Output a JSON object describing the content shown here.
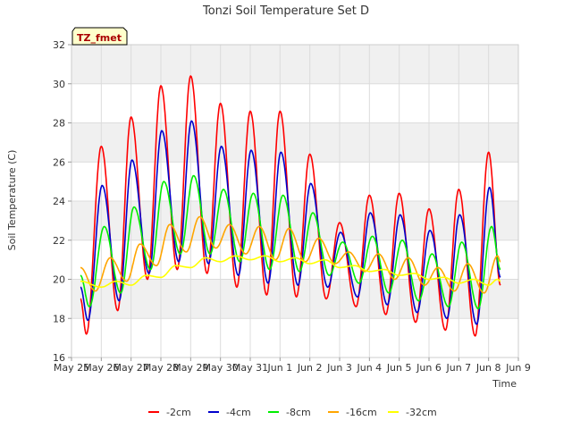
{
  "chart_data": {
    "type": "line",
    "title": "Tonzi Soil Temperature Set D",
    "xlabel": "Time",
    "ylabel": "Soil Temperature (C)",
    "annotation": "TZ_fmet",
    "ylim": [
      16,
      32
    ],
    "yticks": [
      16,
      18,
      20,
      22,
      24,
      26,
      28,
      30,
      32
    ],
    "xlim": [
      0,
      15
    ],
    "xtick_positions": [
      0,
      1,
      2,
      3,
      4,
      5,
      6,
      7,
      8,
      9,
      10,
      11,
      12,
      13,
      14,
      15
    ],
    "xtick_labels": [
      "May 25",
      "May 26",
      "May 27",
      "May 28",
      "May 29",
      "May 30",
      "May 31",
      "Jun 1",
      "Jun 2",
      "Jun 3",
      "Jun 4",
      "Jun 5",
      "Jun 6",
      "Jun 7",
      "Jun 8",
      "Jun 9"
    ],
    "grid": true,
    "legend_position": "bottom",
    "series": [
      {
        "name": "-2cm",
        "color": "#ff0000",
        "peaks": [
          [
            1.0,
            26.8
          ],
          [
            2.0,
            28.3
          ],
          [
            3.0,
            29.9
          ],
          [
            4.0,
            30.4
          ],
          [
            5.0,
            29.0
          ],
          [
            6.0,
            28.6
          ],
          [
            7.0,
            28.6
          ],
          [
            8.0,
            26.4
          ],
          [
            9.0,
            22.9
          ],
          [
            10.0,
            24.3
          ],
          [
            11.0,
            24.4
          ],
          [
            12.0,
            23.6
          ],
          [
            13.0,
            24.6
          ],
          [
            14.0,
            26.5
          ]
        ],
        "troughs": [
          [
            0.5,
            17.2
          ],
          [
            1.55,
            18.4
          ],
          [
            2.55,
            20.0
          ],
          [
            3.55,
            20.5
          ],
          [
            4.55,
            20.3
          ],
          [
            5.55,
            19.6
          ],
          [
            6.55,
            19.2
          ],
          [
            7.55,
            19.1
          ],
          [
            8.55,
            19.0
          ],
          [
            9.55,
            18.6
          ],
          [
            10.55,
            18.2
          ],
          [
            11.55,
            17.8
          ],
          [
            12.55,
            17.4
          ],
          [
            13.55,
            17.1
          ]
        ],
        "start": [
          0.3,
          19.0
        ],
        "end": [
          14.4,
          19.7
        ]
      },
      {
        "name": "-4cm",
        "color": "#0000cc",
        "peaks": [
          [
            1.03,
            24.8
          ],
          [
            2.03,
            26.1
          ],
          [
            3.03,
            27.6
          ],
          [
            4.03,
            28.1
          ],
          [
            5.03,
            26.8
          ],
          [
            6.03,
            26.6
          ],
          [
            7.03,
            26.5
          ],
          [
            8.03,
            24.9
          ],
          [
            9.03,
            22.4
          ],
          [
            10.03,
            23.4
          ],
          [
            11.03,
            23.3
          ],
          [
            12.03,
            22.5
          ],
          [
            13.03,
            23.3
          ],
          [
            14.03,
            24.7
          ]
        ],
        "troughs": [
          [
            0.55,
            17.9
          ],
          [
            1.6,
            18.9
          ],
          [
            2.6,
            20.3
          ],
          [
            3.6,
            20.9
          ],
          [
            4.6,
            20.8
          ],
          [
            5.6,
            20.2
          ],
          [
            6.6,
            19.8
          ],
          [
            7.6,
            19.7
          ],
          [
            8.6,
            19.6
          ],
          [
            9.6,
            19.1
          ],
          [
            10.6,
            18.7
          ],
          [
            11.6,
            18.3
          ],
          [
            12.6,
            18.0
          ],
          [
            13.6,
            17.7
          ]
        ],
        "start": [
          0.3,
          19.6
        ],
        "end": [
          14.4,
          20.1
        ]
      },
      {
        "name": "-8cm",
        "color": "#00ee00",
        "peaks": [
          [
            1.1,
            22.7
          ],
          [
            2.1,
            23.7
          ],
          [
            3.1,
            25.0
          ],
          [
            4.1,
            25.3
          ],
          [
            5.1,
            24.6
          ],
          [
            6.1,
            24.4
          ],
          [
            7.1,
            24.3
          ],
          [
            8.1,
            23.4
          ],
          [
            9.1,
            21.9
          ],
          [
            10.1,
            22.2
          ],
          [
            11.1,
            22.0
          ],
          [
            12.1,
            21.3
          ],
          [
            13.1,
            21.9
          ],
          [
            14.1,
            22.7
          ]
        ],
        "troughs": [
          [
            0.6,
            18.6
          ],
          [
            1.65,
            19.3
          ],
          [
            2.65,
            20.5
          ],
          [
            3.65,
            21.3
          ],
          [
            4.65,
            21.3
          ],
          [
            5.65,
            20.9
          ],
          [
            6.65,
            20.5
          ],
          [
            7.65,
            20.4
          ],
          [
            8.65,
            20.2
          ],
          [
            9.65,
            19.8
          ],
          [
            10.65,
            19.3
          ],
          [
            11.65,
            18.9
          ],
          [
            12.65,
            18.6
          ],
          [
            13.65,
            18.5
          ]
        ],
        "start": [
          0.3,
          20.2
        ],
        "end": [
          14.4,
          20.5
        ]
      },
      {
        "name": "-16cm",
        "color": "#ffa500",
        "peaks": [
          [
            1.3,
            21.1
          ],
          [
            2.3,
            21.8
          ],
          [
            3.3,
            22.8
          ],
          [
            4.3,
            23.2
          ],
          [
            5.3,
            22.8
          ],
          [
            6.3,
            22.7
          ],
          [
            7.3,
            22.6
          ],
          [
            8.3,
            22.1
          ],
          [
            9.3,
            21.4
          ],
          [
            10.3,
            21.3
          ],
          [
            11.3,
            21.1
          ],
          [
            12.3,
            20.6
          ],
          [
            13.3,
            20.8
          ],
          [
            14.3,
            21.2
          ]
        ],
        "troughs": [
          [
            0.8,
            19.4
          ],
          [
            1.85,
            19.9
          ],
          [
            2.85,
            20.7
          ],
          [
            3.85,
            21.4
          ],
          [
            4.85,
            21.6
          ],
          [
            5.85,
            21.3
          ],
          [
            6.85,
            21.0
          ],
          [
            7.85,
            20.9
          ],
          [
            8.85,
            20.8
          ],
          [
            9.85,
            20.4
          ],
          [
            10.85,
            20.0
          ],
          [
            11.85,
            19.7
          ],
          [
            12.85,
            19.4
          ],
          [
            13.85,
            19.3
          ]
        ],
        "start": [
          0.3,
          20.6
        ],
        "end": [
          14.4,
          20.9
        ]
      },
      {
        "name": "-32cm",
        "color": "#ffff00",
        "peaks": [
          [
            1.5,
            19.9
          ],
          [
            2.5,
            20.2
          ],
          [
            3.5,
            20.7
          ],
          [
            4.5,
            21.1
          ],
          [
            5.5,
            21.2
          ],
          [
            6.5,
            21.2
          ],
          [
            7.5,
            21.1
          ],
          [
            8.5,
            21.0
          ],
          [
            9.5,
            20.7
          ],
          [
            10.5,
            20.5
          ],
          [
            11.5,
            20.3
          ],
          [
            12.5,
            20.1
          ],
          [
            13.5,
            20.0
          ],
          [
            14.3,
            20.0
          ]
        ],
        "troughs": [
          [
            1.0,
            19.6
          ],
          [
            2.0,
            19.7
          ],
          [
            3.0,
            20.1
          ],
          [
            4.0,
            20.6
          ],
          [
            5.0,
            20.9
          ],
          [
            6.0,
            21.0
          ],
          [
            7.0,
            20.9
          ],
          [
            8.0,
            20.8
          ],
          [
            9.0,
            20.6
          ],
          [
            10.0,
            20.4
          ],
          [
            11.0,
            20.2
          ],
          [
            12.0,
            20.0
          ],
          [
            13.0,
            19.8
          ],
          [
            14.0,
            19.7
          ]
        ],
        "start": [
          0.3,
          19.9
        ],
        "end": [
          14.4,
          19.9
        ]
      }
    ]
  },
  "colors": {
    "band": "#f0f0f0",
    "grid": "#dcdcdc",
    "axis": "#cccccc",
    "annotation_bg": "#ffffcc",
    "annotation_text": "#aa0000"
  }
}
